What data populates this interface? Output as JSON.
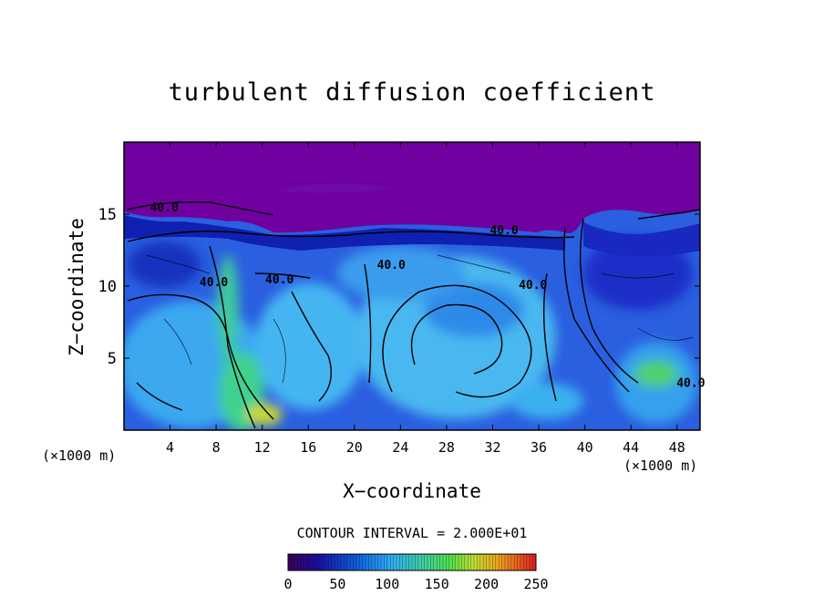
{
  "chart_data": {
    "type": "heatmap",
    "title": "turbulent diffusion coefficient",
    "xlabel": "X−coordinate",
    "ylabel": "Z−coordinate",
    "x_unit": "(×1000 m)",
    "y_unit": "(×1000 m)",
    "xlim": [
      0,
      50
    ],
    "ylim": [
      0,
      20
    ],
    "x_ticks": [
      4,
      8,
      12,
      16,
      20,
      24,
      28,
      32,
      36,
      40,
      44,
      48
    ],
    "x_tick_labels": [
      "4",
      "8",
      "12",
      "16",
      "20",
      "24",
      "28",
      "32",
      "36",
      "40",
      "44",
      "48"
    ],
    "y_ticks": [
      5,
      10,
      15
    ],
    "y_tick_labels": [
      "5",
      "10",
      "15"
    ],
    "contour_interval_text": "CONTOUR INTERVAL = 2.000E+01",
    "contour_labels": [
      {
        "text": "40.0",
        "x": 33,
        "y": 13.6
      },
      {
        "text": "40.0",
        "x": 35.5,
        "y": 9.8
      },
      {
        "text": "40.0",
        "x": 23.2,
        "y": 11.2
      },
      {
        "text": "40.0",
        "x": 13.5,
        "y": 10.2
      },
      {
        "text": "40.0",
        "x": 7.8,
        "y": 10.0
      },
      {
        "text": "40.0",
        "x": 3.5,
        "y": 15.2
      },
      {
        "text": "40.0",
        "x": 49.2,
        "y": 3.0
      }
    ],
    "colorbar": {
      "ticks": [
        0,
        50,
        100,
        150,
        200,
        250
      ],
      "tick_labels": [
        "0",
        "50",
        "100",
        "150",
        "200",
        "250"
      ],
      "range": [
        0,
        250
      ]
    },
    "grid": false
  }
}
